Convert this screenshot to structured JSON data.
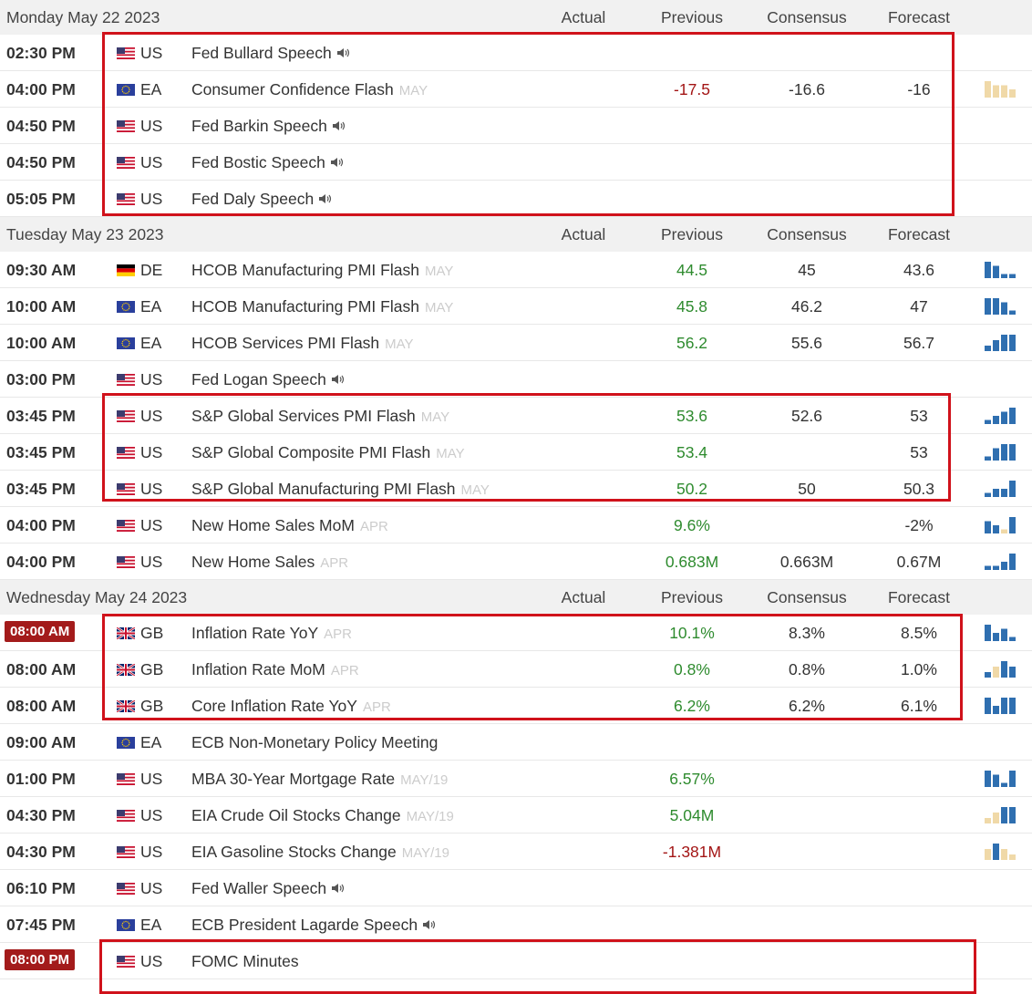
{
  "days": [
    {
      "date": "Monday May 22 2023",
      "columns": [
        "Actual",
        "Previous",
        "Consensus",
        "Forecast"
      ],
      "events": [
        {
          "time": "02:30 PM",
          "country": "US",
          "event": "Fed Bullard Speech",
          "speech": true
        },
        {
          "time": "04:00 PM",
          "country": "EA",
          "event": "Consumer Confidence Flash",
          "period": "MAY",
          "previous": "-17.5",
          "previous_color": "#a31515",
          "consensus": "-16.6",
          "forecast": "-16",
          "spark": [
            -4,
            -3,
            -3,
            -2
          ]
        },
        {
          "time": "04:50 PM",
          "country": "US",
          "event": "Fed Barkin Speech",
          "speech": true
        },
        {
          "time": "04:50 PM",
          "country": "US",
          "event": "Fed Bostic Speech",
          "speech": true
        },
        {
          "time": "05:05 PM",
          "country": "US",
          "event": "Fed Daly Speech",
          "speech": true
        }
      ]
    },
    {
      "date": "Tuesday May 23 2023",
      "columns": [
        "Actual",
        "Previous",
        "Consensus",
        "Forecast"
      ],
      "events": [
        {
          "time": "09:30 AM",
          "country": "DE",
          "event": "HCOB Manufacturing PMI Flash",
          "period": "MAY",
          "previous": "44.5",
          "previous_color": "#2e8b2e",
          "consensus": "45",
          "forecast": "43.6",
          "spark": [
            4,
            3,
            1,
            1
          ]
        },
        {
          "time": "10:00 AM",
          "country": "EA",
          "event": "HCOB Manufacturing PMI Flash",
          "period": "MAY",
          "previous": "45.8",
          "previous_color": "#2e8b2e",
          "consensus": "46.2",
          "forecast": "47",
          "spark": [
            4,
            4,
            3,
            1
          ]
        },
        {
          "time": "10:00 AM",
          "country": "EA",
          "event": "HCOB Services PMI Flash",
          "period": "MAY",
          "previous": "56.2",
          "previous_color": "#2e8b2e",
          "consensus": "55.6",
          "forecast": "56.7",
          "spark": [
            1,
            2,
            3,
            3
          ]
        },
        {
          "time": "03:00 PM",
          "country": "US",
          "event": "Fed Logan Speech",
          "speech": true
        },
        {
          "time": "03:45 PM",
          "country": "US",
          "event": "S&P Global Services PMI Flash",
          "period": "MAY",
          "previous": "53.6",
          "previous_color": "#2e8b2e",
          "consensus": "52.6",
          "forecast": "53",
          "spark": [
            1,
            2,
            3,
            4
          ]
        },
        {
          "time": "03:45 PM",
          "country": "US",
          "event": "S&P Global Composite PMI Flash",
          "period": "MAY",
          "previous": "53.4",
          "previous_color": "#2e8b2e",
          "forecast": "53",
          "spark": [
            1,
            3,
            4,
            4
          ]
        },
        {
          "time": "03:45 PM",
          "country": "US",
          "event": "S&P Global Manufacturing PMI Flash",
          "period": "MAY",
          "previous": "50.2",
          "previous_color": "#2e8b2e",
          "consensus": "50",
          "forecast": "50.3",
          "spark": [
            1,
            2,
            2,
            4
          ]
        },
        {
          "time": "04:00 PM",
          "country": "US",
          "event": "New Home Sales MoM",
          "period": "APR",
          "previous": "9.6%",
          "previous_color": "#2e8b2e",
          "forecast": "-2%",
          "spark": [
            3,
            2,
            -1,
            4
          ]
        },
        {
          "time": "04:00 PM",
          "country": "US",
          "event": "New Home Sales",
          "period": "APR",
          "previous": "0.683M",
          "previous_color": "#2e8b2e",
          "consensus": "0.663M",
          "forecast": "0.67M",
          "spark": [
            1,
            1,
            2,
            4
          ]
        }
      ]
    },
    {
      "date": "Wednesday May 24 2023",
      "columns": [
        "Actual",
        "Previous",
        "Consensus",
        "Forecast"
      ],
      "events": [
        {
          "time": "08:00 AM",
          "highlight": true,
          "country": "GB",
          "event": "Inflation Rate YoY",
          "period": "APR",
          "previous": "10.1%",
          "previous_color": "#2e8b2e",
          "consensus": "8.3%",
          "forecast": "8.5%",
          "spark": [
            4,
            2,
            3,
            1
          ]
        },
        {
          "time": "08:00 AM",
          "country": "GB",
          "event": "Inflation Rate MoM",
          "period": "APR",
          "previous": "0.8%",
          "previous_color": "#2e8b2e",
          "consensus": "0.8%",
          "forecast": "1.0%",
          "spark": [
            1,
            -2,
            3,
            2
          ]
        },
        {
          "time": "08:00 AM",
          "country": "GB",
          "event": "Core Inflation Rate YoY",
          "period": "APR",
          "previous": "6.2%",
          "previous_color": "#2e8b2e",
          "consensus": "6.2%",
          "forecast": "6.1%",
          "spark": [
            4,
            2,
            4,
            4
          ]
        },
        {
          "time": "09:00 AM",
          "country": "EA",
          "event": "ECB Non-Monetary Policy Meeting"
        },
        {
          "time": "01:00 PM",
          "country": "US",
          "event": "MBA 30-Year Mortgage Rate",
          "period": "MAY/19",
          "previous": "6.57%",
          "previous_color": "#2e8b2e",
          "spark": [
            4,
            3,
            1,
            4
          ]
        },
        {
          "time": "04:30 PM",
          "country": "US",
          "event": "EIA Crude Oil Stocks Change",
          "period": "MAY/19",
          "previous": "5.04M",
          "previous_color": "#2e8b2e",
          "spark": [
            -1,
            -2,
            3,
            3
          ]
        },
        {
          "time": "04:30 PM",
          "country": "US",
          "event": "EIA Gasoline Stocks Change",
          "period": "MAY/19",
          "previous": "-1.381M",
          "previous_color": "#a31515",
          "spark": [
            -2,
            3,
            -2,
            -1
          ]
        },
        {
          "time": "06:10 PM",
          "country": "US",
          "event": "Fed Waller Speech",
          "speech": true
        },
        {
          "time": "07:45 PM",
          "country": "EA",
          "event": "ECB President Lagarde Speech",
          "speech": true
        },
        {
          "time": "08:00 PM",
          "highlight": true,
          "country": "US",
          "event": "FOMC Minutes"
        }
      ]
    }
  ]
}
